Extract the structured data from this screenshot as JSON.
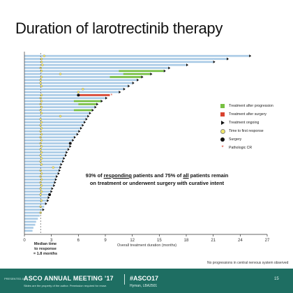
{
  "slide": {
    "title": "Duration of larotrectinib therapy",
    "annotation_part1": "93% of ",
    "annotation_u1": "responding",
    "annotation_part2": " patients and 75% of ",
    "annotation_u2": "all",
    "annotation_part3": " patients remain on treatment or underwent surgery with curative intent",
    "median_line1": "Median time",
    "median_line2": "to response",
    "median_line3": "= 1.8 months",
    "footnote": "No progressions in central nervous system observed"
  },
  "legend": [
    {
      "label": "Treatment after progression",
      "icon": "green-bar"
    },
    {
      "label": "Treatment after surgery",
      "icon": "red-bar"
    },
    {
      "label": "Treatment ongoing",
      "icon": "black-triangle"
    },
    {
      "label": "Time to first response",
      "icon": "yellow-circle"
    },
    {
      "label": "Surgery",
      "icon": "black-circle"
    },
    {
      "label": "Pathologic CR",
      "icon": "red-star"
    }
  ],
  "banner": {
    "presented": "PRESENTED AT:",
    "meeting": "ASCO ANNUAL MEETING '17",
    "hashtag": "#ASCO17",
    "sub": "Slides are the property of the author. Permission required for reuse.",
    "author": "Hyman, LBA2501",
    "page": "15"
  },
  "colors": {
    "bar": "#aacbe6",
    "progression": "#77c042",
    "surgery": "#d9432f",
    "banner": "#1e6e62"
  },
  "chart_data": {
    "type": "bar",
    "orientation": "horizontal",
    "title": "Duration of larotrectinib therapy",
    "xlabel": "Overall treatment duration (months)",
    "xlim": [
      0,
      27
    ],
    "xticks": [
      0,
      3,
      6,
      9,
      12,
      15,
      18,
      21,
      24,
      27
    ],
    "median_time_to_response_months": 1.8,
    "bars": [
      {
        "d": 25.0,
        "r": 2.2,
        "tri": true
      },
      {
        "d": 22.5,
        "r": 1.9,
        "tri": true
      },
      {
        "d": 21.0,
        "r": 1.9,
        "tri": true
      },
      {
        "d": 18.0,
        "r": 2.0,
        "tri": true
      },
      {
        "d": 16.0,
        "r": 1.8,
        "tri": true
      },
      {
        "d": 15.5,
        "r": 1.9,
        "tri": true,
        "green": [
          10.5,
          15.5
        ]
      },
      {
        "d": 14.0,
        "r": 4.0,
        "tri": true,
        "green": [
          11.0,
          14.0
        ]
      },
      {
        "d": 13.0,
        "r": 1.9,
        "tri": true,
        "green": [
          9.5,
          13.0
        ]
      },
      {
        "d": 12.5,
        "r": 1.8,
        "tri": true
      },
      {
        "d": 12.0,
        "r": 1.8,
        "tri": true
      },
      {
        "d": 11.5,
        "r": 1.9,
        "tri": true
      },
      {
        "d": 11.0,
        "r": 6.5,
        "tri": true
      },
      {
        "d": 10.5,
        "r": 6.0,
        "tri": true
      },
      {
        "d": 9.5,
        "r": 1.9,
        "dot": 6.0,
        "red": [
          6.0,
          9.5
        ],
        "star": 9.5
      },
      {
        "d": 9.0,
        "r": 1.8,
        "tri": true
      },
      {
        "d": 8.5,
        "r": 1.9,
        "tri": true,
        "green": [
          5.5,
          8.5
        ]
      },
      {
        "d": 8.0,
        "r": 1.8,
        "tri": true,
        "green": [
          6.0,
          8.0
        ]
      },
      {
        "d": 7.8,
        "r": 1.9,
        "tri": true
      },
      {
        "d": 7.5,
        "r": 1.8,
        "tri": true,
        "green": [
          5.5,
          7.5
        ]
      },
      {
        "d": 7.2,
        "r": 1.9,
        "tri": true
      },
      {
        "d": 7.0,
        "r": 4.0,
        "tri": true
      },
      {
        "d": 6.8,
        "r": 1.8,
        "tri": true
      },
      {
        "d": 6.6,
        "r": 1.9,
        "tri": true
      },
      {
        "d": 6.4,
        "r": 1.8,
        "tri": true
      },
      {
        "d": 6.2,
        "r": 1.9,
        "tri": true
      },
      {
        "d": 6.0,
        "r": 1.8,
        "tri": true
      },
      {
        "d": 5.8,
        "r": 1.9,
        "tri": true
      },
      {
        "d": 5.5,
        "r": 1.8,
        "tri": true
      },
      {
        "d": 5.3,
        "r": 1.9,
        "tri": true
      },
      {
        "d": 5.1,
        "r": 1.8,
        "dot": 5.1
      },
      {
        "d": 5.0,
        "r": 1.9,
        "tri": true
      },
      {
        "d": 4.8,
        "r": 1.8,
        "tri": true
      },
      {
        "d": 4.6,
        "r": 1.9,
        "tri": true
      },
      {
        "d": 4.5,
        "r": 1.8,
        "tri": true
      },
      {
        "d": 4.3,
        "r": 1.9,
        "tri": true
      },
      {
        "d": 4.2,
        "r": 1.8,
        "tri": true
      },
      {
        "d": 4.0,
        "r": 1.9,
        "tri": true
      },
      {
        "d": 3.9,
        "r": 3.2,
        "tri": true
      },
      {
        "d": 3.8,
        "r": 1.8,
        "tri": true
      },
      {
        "d": 3.7,
        "r": 1.9,
        "tri": true
      },
      {
        "d": 3.5,
        "r": 1.8,
        "tri": true
      },
      {
        "d": 3.4,
        "r": 1.9,
        "tri": true
      },
      {
        "d": 3.3,
        "r": 1.8,
        "tri": true
      },
      {
        "d": 3.2,
        "r": 1.9,
        "tri": true
      },
      {
        "d": 3.0,
        "r": 1.8,
        "tri": true
      },
      {
        "d": 2.9,
        "r": 1.9,
        "tri": true
      },
      {
        "d": 2.8,
        "r": 1.8,
        "dot": 2.8
      },
      {
        "d": 2.6,
        "tri": true
      },
      {
        "d": 2.5,
        "r": 1.9,
        "tri": true
      },
      {
        "d": 2.3,
        "tri": true
      },
      {
        "d": 2.2,
        "r": 1.8
      },
      {
        "d": 2.0,
        "tri": true
      },
      {
        "d": 1.9,
        "r": 1.8
      },
      {
        "d": 1.7
      },
      {
        "d": 1.5
      },
      {
        "d": 1.3
      },
      {
        "d": 1.2
      },
      {
        "d": 1.0
      },
      {
        "d": 0.9
      }
    ]
  }
}
